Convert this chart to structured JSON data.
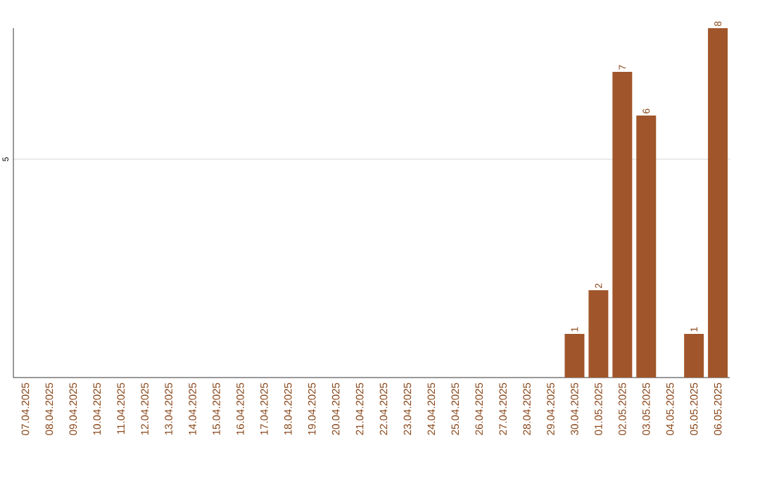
{
  "chart_data": {
    "type": "bar",
    "categories": [
      "07.04.2025",
      "08.04.2025",
      "09.04.2025",
      "10.04.2025",
      "11.04.2025",
      "12.04.2025",
      "13.04.2025",
      "14.04.2025",
      "15.04.2025",
      "16.04.2025",
      "17.04.2025",
      "18.04.2025",
      "19.04.2025",
      "20.04.2025",
      "21.04.2025",
      "22.04.2025",
      "23.04.2025",
      "24.04.2025",
      "25.04.2025",
      "26.04.2025",
      "27.04.2025",
      "28.04.2025",
      "29.04.2025",
      "30.04.2025",
      "01.05.2025",
      "02.05.2025",
      "03.05.2025",
      "04.05.2025",
      "05.05.2025",
      "06.05.2025"
    ],
    "values": [
      null,
      null,
      null,
      null,
      null,
      null,
      null,
      null,
      null,
      null,
      null,
      null,
      null,
      null,
      null,
      null,
      null,
      null,
      null,
      null,
      null,
      null,
      null,
      1,
      2,
      7,
      6,
      null,
      1,
      8
    ],
    "data_labels": true,
    "color": "#a0562a",
    "ylim": [
      0,
      8
    ],
    "yticks": [
      5
    ],
    "grid": "y"
  }
}
